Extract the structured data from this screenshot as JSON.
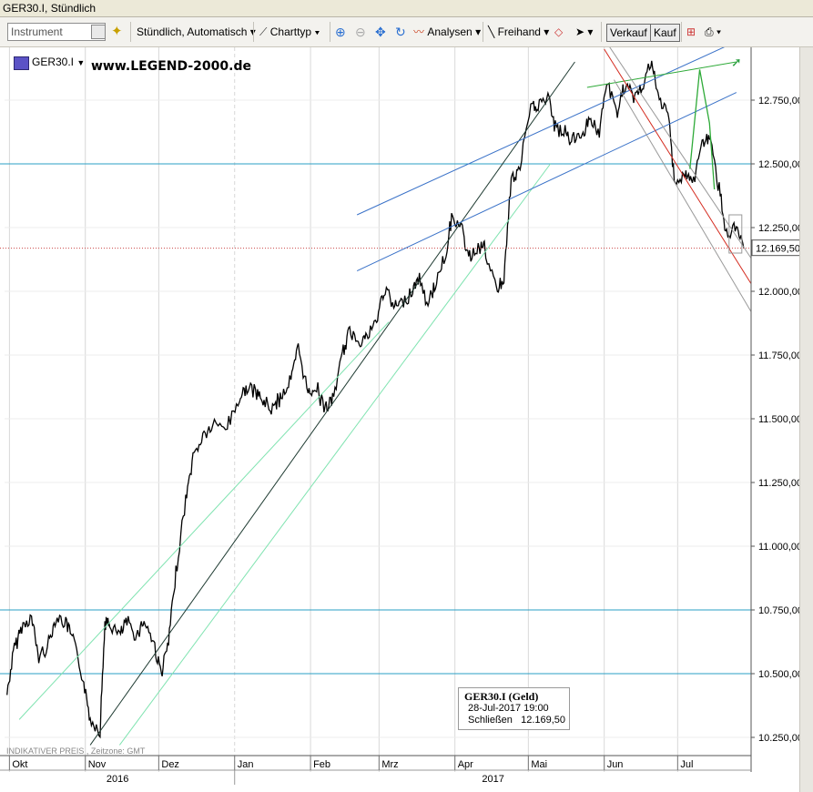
{
  "window": {
    "title": "GER30.I, Stündlich"
  },
  "toolbar": {
    "instrument_placeholder": "Instrument",
    "interval_label": "Stündlich, Automatisch",
    "charttype_label": "Charttyp",
    "analysen_label": "Analysen",
    "freehand_label": "Freihand",
    "sell_label": "Verkauf",
    "buy_label": "Kauf"
  },
  "chart_header": {
    "symbol": "GER30.I",
    "watermark": "www.LEGEND-2000.de"
  },
  "footer": {
    "indicative": "INDIKATIVER PREIS",
    "timezone": "Zeitzone: GMT"
  },
  "tooltip": {
    "title": "GER30.I (Geld)",
    "date": "28-Jul-2017 19:00",
    "close_label": "Schließen",
    "close_value": "12.169,50"
  },
  "last_price": "12.169,50",
  "colors": {
    "hline": "#2a9fc4",
    "red": "#d42a1e",
    "green": "#2eaa38",
    "lightgreen": "#7fe3b0",
    "blue": "#3a72c8",
    "dark": "#1f3b32"
  },
  "chart_data": {
    "type": "line",
    "title": "GER30.I, Stündlich",
    "xlabel": "",
    "ylabel": "",
    "ylim": [
      10150,
      12980
    ],
    "y_ticks": [
      "12.750,00",
      "12.500,00",
      "12.250,00",
      "12.000,00",
      "11.750,00",
      "11.500,00",
      "11.250,00",
      "11.000,00",
      "10.750,00",
      "10.500,00",
      "10.250,00"
    ],
    "y_tick_values": [
      12750,
      12500,
      12250,
      12000,
      11750,
      11500,
      11250,
      11000,
      10750,
      10500,
      10250
    ],
    "x_ticks": [
      "Okt",
      "Nov",
      "Dez",
      "Jan",
      "Feb",
      "Mrz",
      "Apr",
      "Mai",
      "Jun",
      "Jul"
    ],
    "x_years": [
      "2016",
      "2017"
    ],
    "x_range": [
      "2016-09-29",
      "2017-07-31"
    ],
    "series": [
      {
        "dates": [
          "2016-09-30",
          "2016-10-03",
          "2016-10-06",
          "2016-10-10",
          "2016-10-13",
          "2016-10-17",
          "2016-10-20",
          "2016-10-24",
          "2016-10-27",
          "2016-10-31",
          "2016-11-03",
          "2016-11-07",
          "2016-11-09",
          "2016-11-11",
          "2016-11-15",
          "2016-11-18",
          "2016-11-22",
          "2016-11-25",
          "2016-11-29",
          "2016-12-02",
          "2016-12-05",
          "2016-12-08",
          "2016-12-12",
          "2016-12-15",
          "2016-12-19",
          "2016-12-23",
          "2016-12-29",
          "2017-01-03",
          "2017-01-06",
          "2017-01-10",
          "2017-01-13",
          "2017-01-17",
          "2017-01-20",
          "2017-01-24",
          "2017-01-27",
          "2017-01-31",
          "2017-02-03",
          "2017-02-07",
          "2017-02-10",
          "2017-02-14",
          "2017-02-17",
          "2017-02-21",
          "2017-02-24",
          "2017-02-28",
          "2017-03-03",
          "2017-03-07",
          "2017-03-10",
          "2017-03-14",
          "2017-03-17",
          "2017-03-21",
          "2017-03-24",
          "2017-03-28",
          "2017-03-31",
          "2017-04-04",
          "2017-04-07",
          "2017-04-11",
          "2017-04-13",
          "2017-04-18",
          "2017-04-21",
          "2017-04-24",
          "2017-04-27",
          "2017-05-02",
          "2017-05-05",
          "2017-05-09",
          "2017-05-12",
          "2017-05-16",
          "2017-05-19",
          "2017-05-23",
          "2017-05-26",
          "2017-05-30",
          "2017-06-02",
          "2017-06-06",
          "2017-06-09",
          "2017-06-13",
          "2017-06-16",
          "2017-06-20",
          "2017-06-23",
          "2017-06-27",
          "2017-06-30",
          "2017-07-04",
          "2017-07-07",
          "2017-07-11",
          "2017-07-14",
          "2017-07-18",
          "2017-07-21",
          "2017-07-25",
          "2017-07-28"
        ],
        "values": [
          10420,
          10600,
          10680,
          10720,
          10560,
          10620,
          10720,
          10700,
          10630,
          10480,
          10320,
          10280,
          10700,
          10690,
          10650,
          10700,
          10650,
          10710,
          10620,
          10500,
          10620,
          10900,
          11180,
          11350,
          11430,
          11470,
          11470,
          11580,
          11620,
          11600,
          11560,
          11540,
          11590,
          11650,
          11780,
          11600,
          11630,
          11540,
          11570,
          11750,
          11840,
          11810,
          11820,
          11880,
          12010,
          11940,
          11950,
          11990,
          12050,
          11950,
          12030,
          12140,
          12300,
          12230,
          12130,
          12180,
          12170,
          12000,
          12050,
          12440,
          12460,
          12720,
          12730,
          12760,
          12640,
          12620,
          12590,
          12620,
          12680,
          12620,
          12820,
          12700,
          12800,
          12760,
          12790,
          12900,
          12760,
          12700,
          12420,
          12460,
          12420,
          12580,
          12600,
          12400,
          12220,
          12240,
          12169
        ]
      }
    ],
    "horizontal_lines": [
      12500,
      10750,
      10500
    ]
  }
}
